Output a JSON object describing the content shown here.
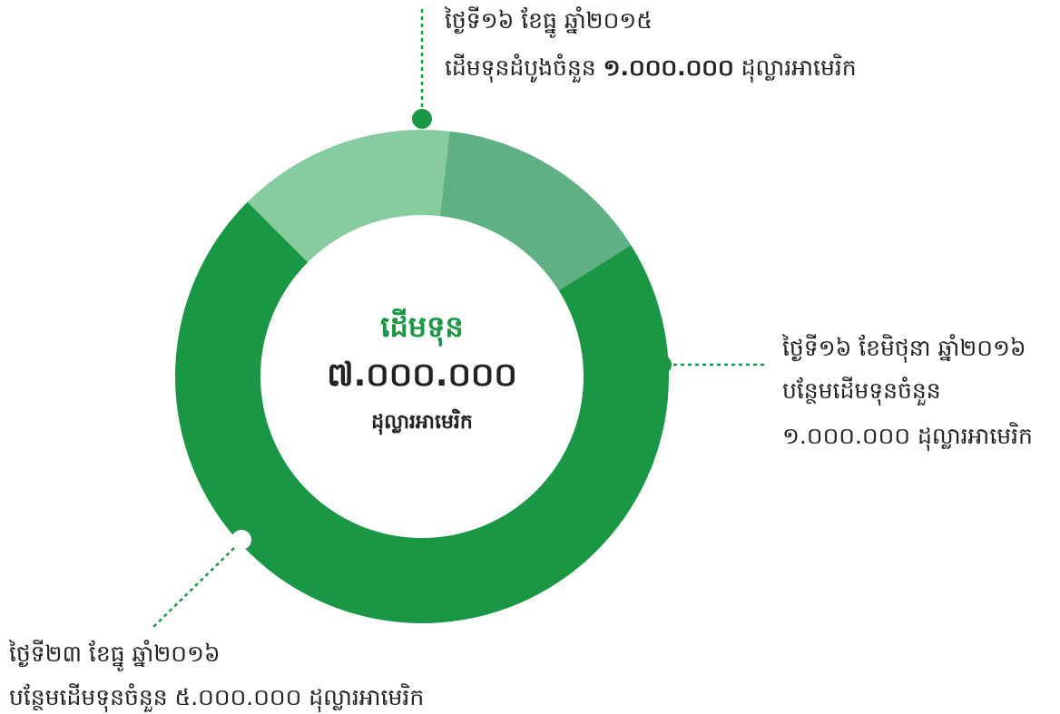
{
  "chart_data": {
    "type": "donut",
    "center_title": "ដើមទុន",
    "total_label": "៧.០០០.០០០",
    "unit": "ដុល្លារអាមេរិក",
    "categories": [
      "ថ្ងៃទី១៦ ខែធ្នូ ឆ្នាំ២០១៥",
      "ថ្ងៃទី១៦ ខែមិថុនា ឆ្នាំ២០១៦",
      "ថ្ងៃទី២៣ ខែធ្នូ ឆ្នាំ២០១៦"
    ],
    "descriptions": [
      "ដើមទុនដំបូងចំនួន",
      "បន្ថែមដើមទុនចំនួន",
      "បន្ថែមដើមទុនចំនួន"
    ],
    "values": [
      1000000,
      1000000,
      5000000
    ],
    "value_labels": [
      "១.០០០.០០០",
      "១.០០០.០០០",
      "៥.០០០.០០០"
    ],
    "colors": [
      "#86cc9f",
      "#5fb183",
      "#1a9745"
    ]
  }
}
